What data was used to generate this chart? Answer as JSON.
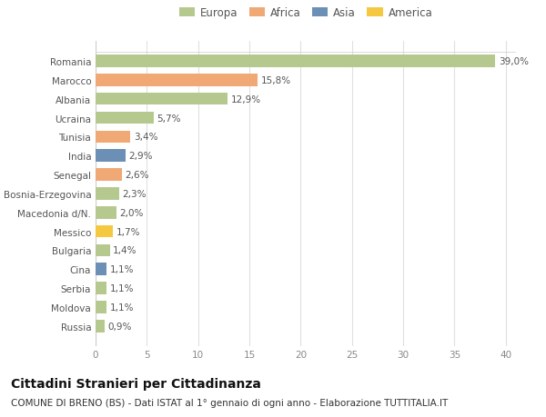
{
  "countries": [
    "Romania",
    "Marocco",
    "Albania",
    "Ucraina",
    "Tunisia",
    "India",
    "Senegal",
    "Bosnia-Erzegovina",
    "Macedonia d/N.",
    "Messico",
    "Bulgaria",
    "Cina",
    "Serbia",
    "Moldova",
    "Russia"
  ],
  "values": [
    39.0,
    15.8,
    12.9,
    5.7,
    3.4,
    2.9,
    2.6,
    2.3,
    2.0,
    1.7,
    1.4,
    1.1,
    1.1,
    1.1,
    0.9
  ],
  "labels": [
    "39,0%",
    "15,8%",
    "12,9%",
    "5,7%",
    "3,4%",
    "2,9%",
    "2,6%",
    "2,3%",
    "2,0%",
    "1,7%",
    "1,4%",
    "1,1%",
    "1,1%",
    "1,1%",
    "0,9%"
  ],
  "colors": [
    "#b5c98e",
    "#f0a875",
    "#b5c98e",
    "#b5c98e",
    "#f0a875",
    "#6b8fb5",
    "#f0a875",
    "#b5c98e",
    "#b5c98e",
    "#f5c842",
    "#b5c98e",
    "#6b8fb5",
    "#b5c98e",
    "#b5c98e",
    "#b5c98e"
  ],
  "legend_labels": [
    "Europa",
    "Africa",
    "Asia",
    "America"
  ],
  "legend_colors": [
    "#b5c98e",
    "#f0a875",
    "#6b8fb5",
    "#f5c842"
  ],
  "title": "Cittadini Stranieri per Cittadinanza",
  "subtitle": "COMUNE DI BRENO (BS) - Dati ISTAT al 1° gennaio di ogni anno - Elaborazione TUTTITALIA.IT",
  "xlim": [
    0,
    41
  ],
  "xticks": [
    0,
    5,
    10,
    15,
    20,
    25,
    30,
    35,
    40
  ],
  "bg_color": "#ffffff",
  "grid_color": "#e0e0e0",
  "bar_height": 0.65,
  "label_fontsize": 7.5,
  "tick_fontsize": 7.5,
  "legend_fontsize": 8.5,
  "title_fontsize": 10,
  "subtitle_fontsize": 7.5
}
